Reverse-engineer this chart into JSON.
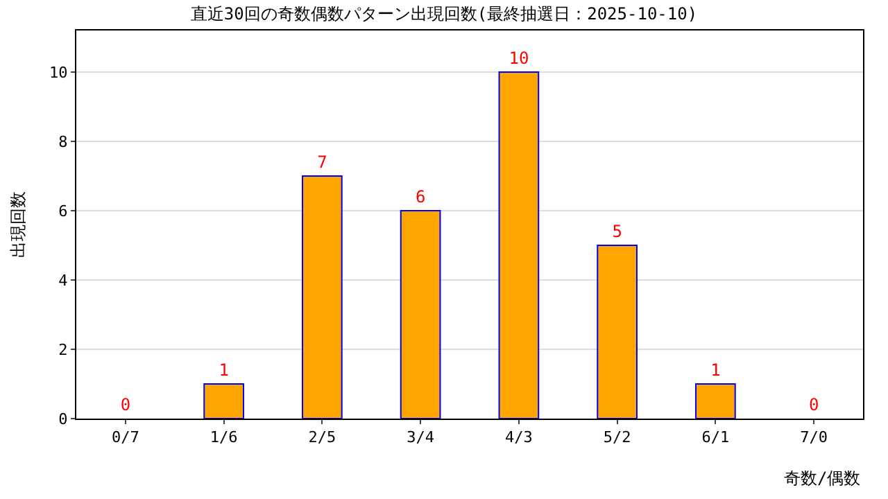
{
  "chart_data": {
    "type": "bar",
    "title": "直近30回の奇数偶数パターン出現回数(最終抽選日：2025-10-10)",
    "xlabel": "奇数/偶数",
    "ylabel": "出現回数",
    "categories": [
      "0/7",
      "1/6",
      "2/5",
      "3/4",
      "4/3",
      "5/2",
      "6/1",
      "7/0"
    ],
    "values": [
      0,
      1,
      7,
      6,
      10,
      5,
      1,
      0
    ],
    "color": "#ffa500",
    "data_labels": true,
    "ylim": [
      0,
      11.2
    ],
    "yticks": [
      0,
      2,
      4,
      6,
      8,
      10
    ],
    "grid": "y",
    "legend": false
  }
}
